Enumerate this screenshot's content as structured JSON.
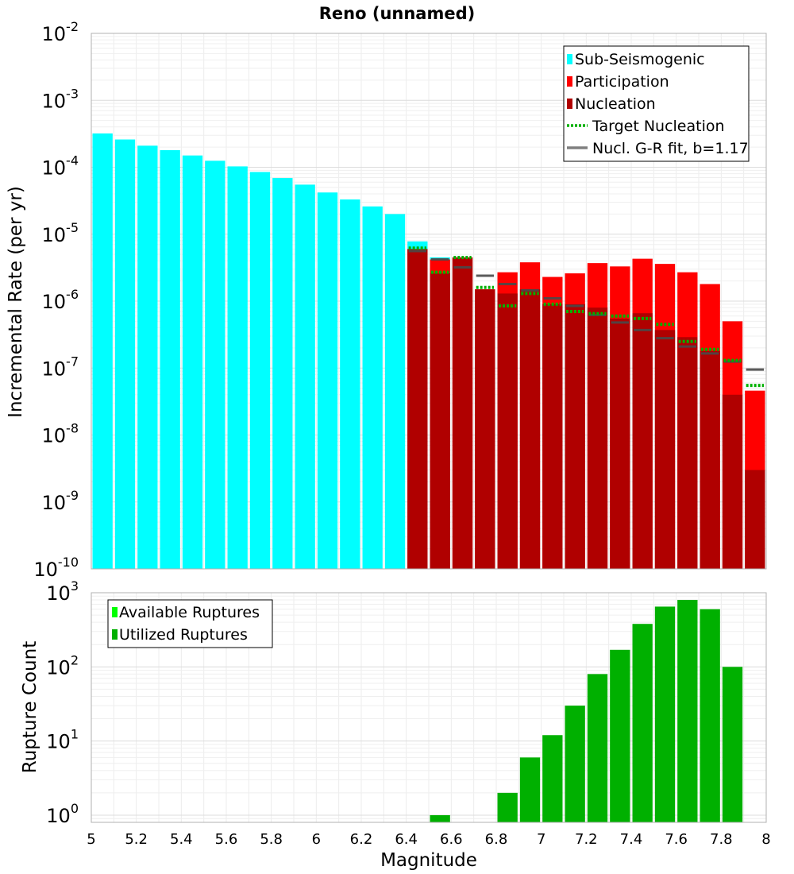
{
  "chart_data": [
    {
      "type": "bar",
      "title": "Reno (unnamed)",
      "xlabel": "",
      "ylabel": "Incremental Rate (per yr)",
      "yscale": "log",
      "xlim": [
        5,
        8
      ],
      "ylim": [
        1e-10,
        0.01
      ],
      "ytick_exponents": [
        "-10",
        "-9",
        "-8",
        "-7",
        "-6",
        "-5",
        "-4",
        "-3",
        "-2"
      ],
      "legend_position": "top-right",
      "legend": [
        {
          "label": "Sub-Seismogenic",
          "color": "#00ffff",
          "kind": "bar"
        },
        {
          "label": "Participation",
          "color": "#ff0000",
          "kind": "bar"
        },
        {
          "label": "Nucleation",
          "color": "#b00000",
          "kind": "bar"
        },
        {
          "label": "Target Nucleation",
          "color": "#00b000",
          "kind": "dotted-line"
        },
        {
          "label": "Nucl. G-R fit, b=1.17",
          "color": "#808080",
          "kind": "line"
        }
      ],
      "bin_width": 0.1,
      "sub_seismogenic": {
        "x": [
          5.05,
          5.15,
          5.25,
          5.35,
          5.45,
          5.55,
          5.65,
          5.75,
          5.85,
          5.95,
          6.05,
          6.15,
          6.25,
          6.35,
          6.45,
          6.55
        ],
        "values": [
          0.00032,
          0.00026,
          0.00021,
          0.00018,
          0.00015,
          0.000125,
          0.000103,
          8.5e-05,
          6.9e-05,
          5.5e-05,
          4.2e-05,
          3.3e-05,
          2.6e-05,
          2e-05,
          7.8e-06,
          4.5e-06
        ]
      },
      "participation": {
        "x": [
          6.45,
          6.55,
          6.65,
          6.75,
          6.85,
          6.95,
          7.05,
          7.15,
          7.25,
          7.35,
          7.45,
          7.55,
          7.65,
          7.75,
          7.85,
          7.95
        ],
        "values": [
          6e-06,
          4.2e-06,
          4.5e-06,
          1.5e-06,
          2.7e-06,
          3.8e-06,
          2.3e-06,
          2.6e-06,
          3.7e-06,
          3.3e-06,
          4.3e-06,
          3.6e-06,
          2.7e-06,
          1.8e-06,
          5e-07,
          4.6e-08
        ]
      },
      "nucleation": {
        "x": [
          6.45,
          6.55,
          6.65,
          6.75,
          6.85,
          6.95,
          7.05,
          7.15,
          7.25,
          7.35,
          7.45,
          7.55,
          7.65,
          7.75,
          7.85,
          7.95
        ],
        "values": [
          6e-06,
          2.6e-06,
          4.5e-06,
          1.5e-06,
          1.3e-06,
          1.5e-06,
          9e-07,
          9e-07,
          8e-07,
          5.5e-07,
          6.6e-07,
          3.7e-07,
          2.9e-07,
          1.8e-07,
          4e-08,
          3e-09
        ]
      },
      "target_nucleation": {
        "x": [
          6.45,
          6.55,
          6.65,
          6.75,
          6.85,
          6.95,
          7.05,
          7.15,
          7.25,
          7.35,
          7.45,
          7.55,
          7.65,
          7.75,
          7.85,
          7.95
        ],
        "values": [
          6.2e-06,
          2.7e-06,
          4.5e-06,
          1.6e-06,
          8.5e-07,
          1.3e-06,
          9e-07,
          7e-07,
          6.5e-07,
          6e-07,
          5.5e-07,
          4.5e-07,
          2.5e-07,
          1.9e-07,
          1.3e-07,
          5.5e-08
        ]
      },
      "gr_fit": {
        "x": [
          6.45,
          6.55,
          6.65,
          6.75,
          6.85,
          6.95,
          7.05,
          7.15,
          7.25,
          7.35,
          7.45,
          7.55,
          7.65,
          7.75,
          7.85,
          7.95
        ],
        "values": [
          5.6e-06,
          4.2e-06,
          3.2e-06,
          2.4e-06,
          1.8e-06,
          1.45e-06,
          1.1e-06,
          8.5e-07,
          6.2e-07,
          4.8e-07,
          3.7e-07,
          2.8e-07,
          2.1e-07,
          1.65e-07,
          1.25e-07,
          9.5e-08
        ]
      }
    },
    {
      "type": "bar",
      "title": "",
      "xlabel": "Magnitude",
      "ylabel": "Rupture Count",
      "yscale": "log",
      "xlim": [
        5,
        8
      ],
      "ylim": [
        0.8,
        1000
      ],
      "ytick_exponents": [
        "0",
        "1",
        "2",
        "3"
      ],
      "xticks": [
        "5",
        "5.2",
        "5.4",
        "5.6",
        "5.8",
        "6",
        "6.2",
        "6.4",
        "6.6",
        "6.8",
        "7",
        "7.2",
        "7.4",
        "7.6",
        "7.8",
        "8"
      ],
      "legend_position": "top-left",
      "legend": [
        {
          "label": "Available Ruptures",
          "color": "#00ff00",
          "kind": "bar"
        },
        {
          "label": "Utilized Ruptures",
          "color": "#00b000",
          "kind": "bar"
        }
      ],
      "bin_width": 0.1,
      "utilized": {
        "x": [
          6.55,
          6.85,
          6.95,
          7.05,
          7.15,
          7.25,
          7.35,
          7.45,
          7.55,
          7.65,
          7.75,
          7.85
        ],
        "values": [
          1,
          2,
          6,
          12,
          30,
          80,
          170,
          380,
          650,
          800,
          600,
          100
        ]
      }
    }
  ]
}
